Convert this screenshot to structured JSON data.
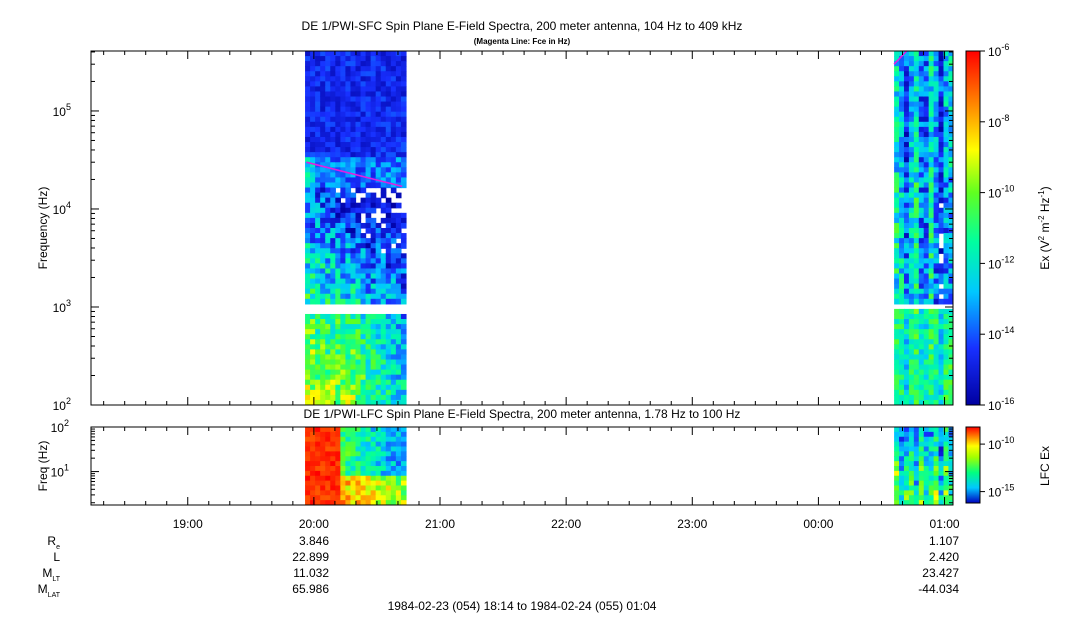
{
  "chart_data": [
    {
      "type": "heatmap",
      "title": "DE 1/PWI-SFC  Spin Plane E-Field Spectra, 200 meter antenna, 104 Hz to 409 kHz",
      "subtitle": "(Magenta Line: Fce in Hz)",
      "ylabel": "Frequency (Hz)",
      "yscale": "log",
      "ylim": [
        100,
        409000
      ],
      "y_ticks": [
        {
          "value": 100,
          "base": "10",
          "exp": "2"
        },
        {
          "value": 1000,
          "base": "10",
          "exp": "3"
        },
        {
          "value": 10000,
          "base": "10",
          "exp": "4"
        },
        {
          "value": 100000,
          "base": "10",
          "exp": "5"
        }
      ],
      "colorbar": {
        "label_parts": [
          "Ex (V",
          "2",
          " m",
          "-2",
          " Hz",
          "-1",
          ")"
        ],
        "scale": "log",
        "range": [
          1e-16,
          1e-06
        ],
        "ticks": [
          {
            "value": 1e-06,
            "base": "10",
            "exp": "-6"
          },
          {
            "value": 1e-08,
            "base": "10",
            "exp": "-8"
          },
          {
            "value": 1e-10,
            "base": "10",
            "exp": "-10"
          },
          {
            "value": 1e-12,
            "base": "10",
            "exp": "-12"
          },
          {
            "value": 1e-14,
            "base": "10",
            "exp": "-14"
          },
          {
            "value": 1e-16,
            "base": "10",
            "exp": "-16"
          }
        ]
      },
      "data_intervals_hours": [
        [
          19.93,
          20.73
        ],
        [
          24.6,
          25.07
        ]
      ],
      "fce_line": [
        {
          "t": 19.94,
          "f": 30000
        },
        {
          "t": 20.7,
          "f": 17000
        },
        {
          "t": 24.6,
          "f": 300000
        },
        {
          "t": 24.7,
          "f": 409000
        }
      ],
      "line_color": "#e020e0"
    },
    {
      "type": "heatmap",
      "title": "DE 1/PWI-LFC  Spin Plane E-Field Spectra, 200 meter antenna, 1.78 Hz to 100 Hz",
      "ylabel": "Freq (Hz)",
      "yscale": "log",
      "ylim": [
        1.78,
        100
      ],
      "y_ticks": [
        {
          "value": 10,
          "base": "10",
          "exp": "1"
        },
        {
          "value": 100,
          "base": "10",
          "exp": "2"
        }
      ],
      "colorbar": {
        "label": "LFC Ex",
        "scale": "log",
        "ticks": [
          {
            "value": 1e-10,
            "base": "10",
            "exp": "-10"
          },
          {
            "value": 1e-15,
            "base": "10",
            "exp": "-15"
          }
        ]
      },
      "data_intervals_hours": [
        [
          19.93,
          20.73
        ],
        [
          24.6,
          25.07
        ]
      ]
    }
  ],
  "time_axis": {
    "range_hours": [
      18.233,
      25.067
    ],
    "ticks": [
      {
        "t": 19,
        "label": "19:00"
      },
      {
        "t": 20,
        "label": "20:00"
      },
      {
        "t": 21,
        "label": "21:00"
      },
      {
        "t": 22,
        "label": "22:00"
      },
      {
        "t": 23,
        "label": "23:00"
      },
      {
        "t": 24,
        "label": "00:00"
      },
      {
        "t": 25,
        "label": "01:00"
      }
    ]
  },
  "ephemeris": {
    "rows": [
      {
        "label": "R",
        "sub": "e",
        "v20": "3.846",
        "v01": "1.107"
      },
      {
        "label": "L",
        "sub": "",
        "v20": "22.899",
        "v01": "2.420"
      },
      {
        "label": "M",
        "sub": "LT",
        "v20": "11.032",
        "v01": "23.427"
      },
      {
        "label": "M",
        "sub": "LAT",
        "v20": "65.986",
        "v01": "-44.034"
      }
    ]
  },
  "footer": "1984-02-23 (054) 18:14 to 1984-02-24 (055) 01:04"
}
